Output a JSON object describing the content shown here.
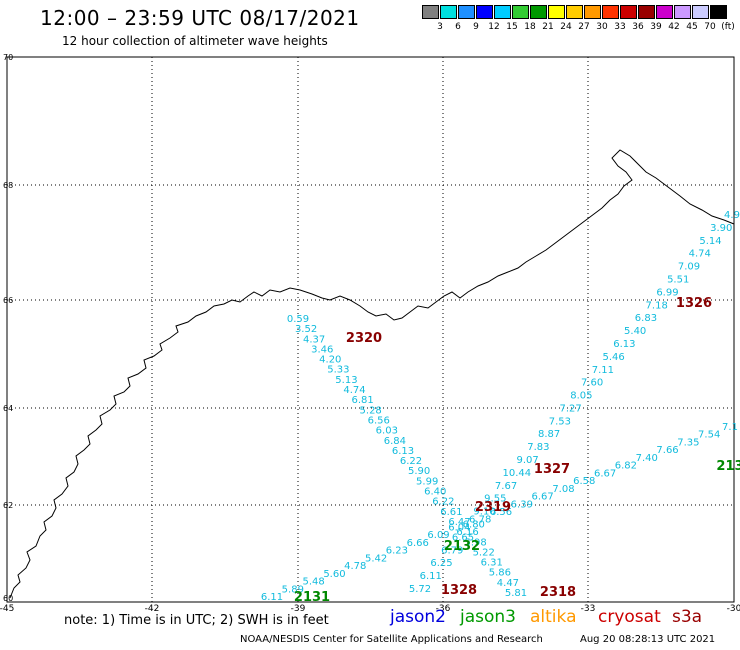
{
  "header": {
    "title": "12:00 – 23:59 UTC 08/17/2021",
    "subtitle": "12 hour collection of altimeter wave heights"
  },
  "colorbar": {
    "colors": [
      "#808080",
      "#00e0e0",
      "#1e90ff",
      "#0000ff",
      "#00ccff",
      "#33cc33",
      "#009900",
      "#ffff00",
      "#ffcc00",
      "#ff9900",
      "#ff3300",
      "#cc0000",
      "#990000",
      "#cc00cc",
      "#cc99ff",
      "#ccccff",
      "#000000"
    ],
    "labels": [
      "3",
      "6",
      "9",
      "12",
      "15",
      "18",
      "21",
      "24",
      "27",
      "30",
      "33",
      "36",
      "39",
      "42",
      "45",
      "70",
      "(ft)"
    ]
  },
  "axes": {
    "lon_labels": [
      "-45",
      "-42",
      "-39",
      "-36",
      "-33",
      "-30"
    ],
    "lat_labels": [
      "60",
      "62",
      "64",
      "66",
      "68",
      "70"
    ]
  },
  "tracks": {
    "track_a": {
      "values": [
        "0.59",
        "3.52",
        "4.37",
        "3.46",
        "4.20",
        "5.33",
        "5.13",
        "4.74",
        "6.81",
        "5.28",
        "6.56",
        "6.03",
        "6.84",
        "6.13",
        "6.22",
        "5.90",
        "5.99",
        "6.40",
        "6.22",
        "6.61",
        "6.47",
        "6.16",
        "5.98",
        "5.22",
        "6.31",
        "5.86",
        "4.47",
        "5.81"
      ],
      "time_labels": [
        "2320",
        "2318"
      ]
    },
    "track_b": {
      "values": [
        "4.9",
        "3.90",
        "5.14",
        "4.74",
        "7.09",
        "5.51",
        "6.99",
        "7.18",
        "6.83",
        "5.40",
        "6.13",
        "5.46",
        "7.11",
        "7.60",
        "8.05",
        "7.27",
        "7.53",
        "8.87",
        "7.83",
        "9.07",
        "10.44",
        "7.67",
        "9.55",
        "9.10",
        "6.80",
        "6.65",
        "6.79",
        "6.25",
        "6.11",
        "5.72"
      ],
      "time_labels": [
        "1326",
        "1327",
        "2319",
        "1328"
      ]
    },
    "track_c": {
      "values": [
        "7.1",
        "7.54",
        "7.35",
        "7.66",
        "7.40",
        "6.82",
        "6.67",
        "6.58",
        "7.08",
        "6.67",
        "6.39",
        "6.56",
        "6.78",
        "6.04",
        "6.09",
        "6.66",
        "6.23",
        "5.42",
        "4.78",
        "5.60",
        "5.48",
        "5.89",
        "6.11"
      ],
      "time_labels": [
        "2131",
        "2132",
        "213"
      ]
    }
  },
  "footer": {
    "note": "note: 1) Time is in UTC; 2) SWH is in feet",
    "satellites": [
      {
        "name": "jason2",
        "color": "#0000dd"
      },
      {
        "name": "jason3",
        "color": "#009900"
      },
      {
        "name": "altika",
        "color": "#ff9900"
      },
      {
        "name": "cryosat",
        "color": "#cc0000"
      },
      {
        "name": "s3a",
        "color": "#990000"
      }
    ],
    "credit": "NOAA/NESDIS Center for Satellite Applications and Research",
    "timestamp": "Aug 20 08:28:13 UTC 2021"
  }
}
